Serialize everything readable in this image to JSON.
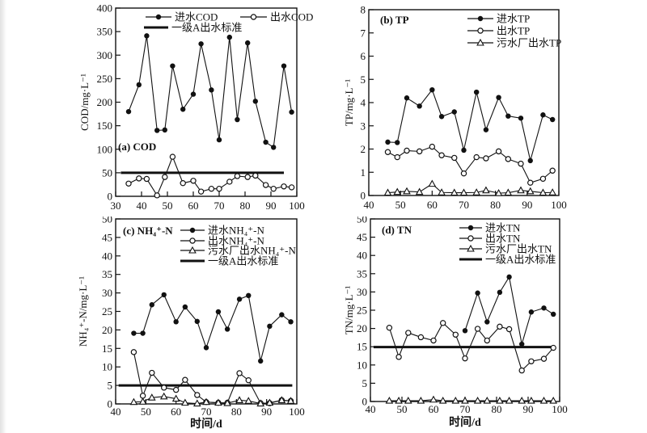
{
  "figure": {
    "description": "Four-panel water quality time series figure",
    "ink_color": "#111111",
    "background": "#ffffff"
  },
  "chart_data": [
    {
      "id": "a",
      "type": "line",
      "title": "(a) COD",
      "ylabel": "COD/mg·L⁻¹",
      "xlabel": "",
      "xlim": [
        30,
        100
      ],
      "ylim": [
        0,
        400
      ],
      "xticks": [
        30,
        40,
        50,
        60,
        70,
        80,
        90,
        100
      ],
      "yticks": [
        0,
        50,
        100,
        150,
        200,
        250,
        300,
        350,
        400
      ],
      "grid": false,
      "legend_position": "top-two-column",
      "x": [
        35,
        39,
        42,
        46,
        49,
        52,
        56,
        60,
        63,
        67,
        70,
        74,
        77,
        81,
        84,
        88,
        91,
        95,
        98
      ],
      "series": [
        {
          "name": "进水COD",
          "marker": "filled-circle",
          "values": [
            180,
            237,
            341,
            140,
            141,
            277,
            185,
            217,
            324,
            226,
            120,
            338,
            163,
            326,
            202,
            115,
            104,
            277,
            179
          ]
        },
        {
          "name": "出水COD",
          "marker": "open-circle",
          "values": [
            27,
            38,
            37,
            2,
            41,
            84,
            28,
            33,
            10,
            16,
            16,
            31,
            43,
            41,
            44,
            24,
            16,
            21,
            19
          ]
        }
      ],
      "ref_line": {
        "label": "一级A出水标准",
        "value": 50,
        "x_start": 32,
        "x_end": 95
      }
    },
    {
      "id": "b",
      "type": "line",
      "title": "(b) TP",
      "ylabel": "TP/mg·L⁻¹",
      "xlabel": "",
      "xlim": [
        40,
        100
      ],
      "ylim": [
        0,
        8
      ],
      "xticks": [
        40,
        50,
        60,
        70,
        80,
        90,
        100
      ],
      "yticks": [
        0,
        1,
        2,
        3,
        4,
        5,
        6,
        7,
        8
      ],
      "grid": false,
      "legend_position": "stack-right",
      "x": [
        46,
        49,
        52,
        56,
        60,
        63,
        67,
        70,
        74,
        77,
        81,
        84,
        88,
        91,
        95,
        98
      ],
      "series": [
        {
          "name": "进水TP",
          "marker": "filled-circle",
          "values": [
            2.3,
            2.28,
            4.2,
            3.85,
            4.55,
            3.4,
            3.6,
            1.95,
            4.45,
            2.83,
            4.22,
            3.42,
            3.33,
            1.5,
            3.47,
            3.27
          ]
        },
        {
          "name": "出水TP",
          "marker": "open-circle",
          "values": [
            1.87,
            1.65,
            1.93,
            1.9,
            2.1,
            1.73,
            1.62,
            0.95,
            1.65,
            1.6,
            1.9,
            1.57,
            1.37,
            0.55,
            0.72,
            1.07
          ]
        },
        {
          "name": "污水厂出水TP",
          "marker": "open-triangle",
          "values": [
            0.12,
            0.15,
            0.18,
            0.15,
            0.5,
            0.13,
            0.12,
            0.12,
            0.13,
            0.22,
            0.1,
            0.12,
            0.22,
            0.18,
            0.12,
            0.13
          ]
        }
      ]
    },
    {
      "id": "c",
      "type": "line",
      "title": "(c) NH₄⁺-N",
      "ylabel": "NH₄⁺-N/mg·L⁻¹",
      "xlabel": "时间/d",
      "xlim": [
        40,
        100
      ],
      "ylim": [
        0,
        50
      ],
      "xticks": [
        40,
        50,
        60,
        70,
        80,
        90,
        100
      ],
      "yticks": [
        0,
        5,
        10,
        15,
        20,
        25,
        30,
        35,
        40,
        45,
        50
      ],
      "grid": false,
      "legend_position": "stack-right",
      "x": [
        46,
        49,
        52,
        56,
        60,
        63,
        67,
        70,
        74,
        77,
        81,
        84,
        88,
        91,
        95,
        98
      ],
      "series": [
        {
          "name": "进水NH₄⁺-N",
          "marker": "filled-circle",
          "values": [
            19.1,
            19.1,
            26.8,
            29.5,
            22.2,
            26.2,
            22.3,
            15.2,
            24.9,
            20.2,
            28.3,
            29.3,
            11.6,
            21.0,
            24.1,
            22.2
          ]
        },
        {
          "name": "出水NH₄⁺-N",
          "marker": "open-circle",
          "values": [
            14.0,
            2.2,
            8.4,
            4.4,
            3.8,
            6.5,
            2.4,
            0.5,
            0.3,
            0.3,
            8.3,
            6.4,
            0.2,
            0.2,
            1.0,
            0.8
          ]
        },
        {
          "name": "污水厂出水NH₄⁺-N",
          "marker": "open-triangle",
          "values": [
            0.5,
            0.6,
            1.7,
            2.0,
            1.4,
            0.3,
            0.1,
            0.5,
            0.3,
            0.2,
            1.0,
            0.8,
            0.1,
            0.3,
            1.0,
            0.8
          ]
        }
      ],
      "ref_line": {
        "label": "一级A出水标准",
        "value": 5,
        "x_start": 41,
        "x_end": 98.5
      }
    },
    {
      "id": "d",
      "type": "line",
      "title": "(d) TN",
      "ylabel": "TN/mg·L⁻¹",
      "xlabel": "时间/d",
      "xlim": [
        40,
        100
      ],
      "ylim": [
        0,
        50
      ],
      "xticks": [
        40,
        50,
        60,
        70,
        80,
        90,
        100
      ],
      "yticks": [
        0,
        5,
        10,
        15,
        20,
        25,
        30,
        35,
        40,
        45,
        50
      ],
      "grid": false,
      "legend_position": "stack-right",
      "x": [
        46,
        49,
        52,
        56,
        60,
        63,
        67,
        70,
        74,
        77,
        81,
        84,
        88,
        91,
        95,
        98
      ],
      "series": [
        {
          "name": "进水TN",
          "marker": "filled-circle",
          "x": [
            70,
            74,
            77,
            81,
            84,
            88,
            91,
            95,
            98
          ],
          "values": [
            19.4,
            29.7,
            21.8,
            29.9,
            34.1,
            15.7,
            24.5,
            25.6,
            23.9
          ]
        },
        {
          "name": "出水TN",
          "marker": "open-circle",
          "values": [
            20.2,
            12.2,
            18.8,
            17.6,
            16.7,
            21.5,
            18.3,
            11.8,
            19.9,
            16.7,
            20.5,
            19.8,
            8.5,
            11.0,
            11.7,
            14.7
          ]
        },
        {
          "name": "污水厂出水TN",
          "marker": "open-triangle",
          "values": [
            0.2,
            0.2,
            0.2,
            0.2,
            0.5,
            0.2,
            0.2,
            0.2,
            0.2,
            0.2,
            0.2,
            0.2,
            0.2,
            0.2,
            0.2,
            0.2
          ]
        }
      ],
      "ref_line": {
        "label": "一级A出水标准",
        "value": 14.9,
        "x_start": 41,
        "x_end": 98.5
      }
    }
  ]
}
